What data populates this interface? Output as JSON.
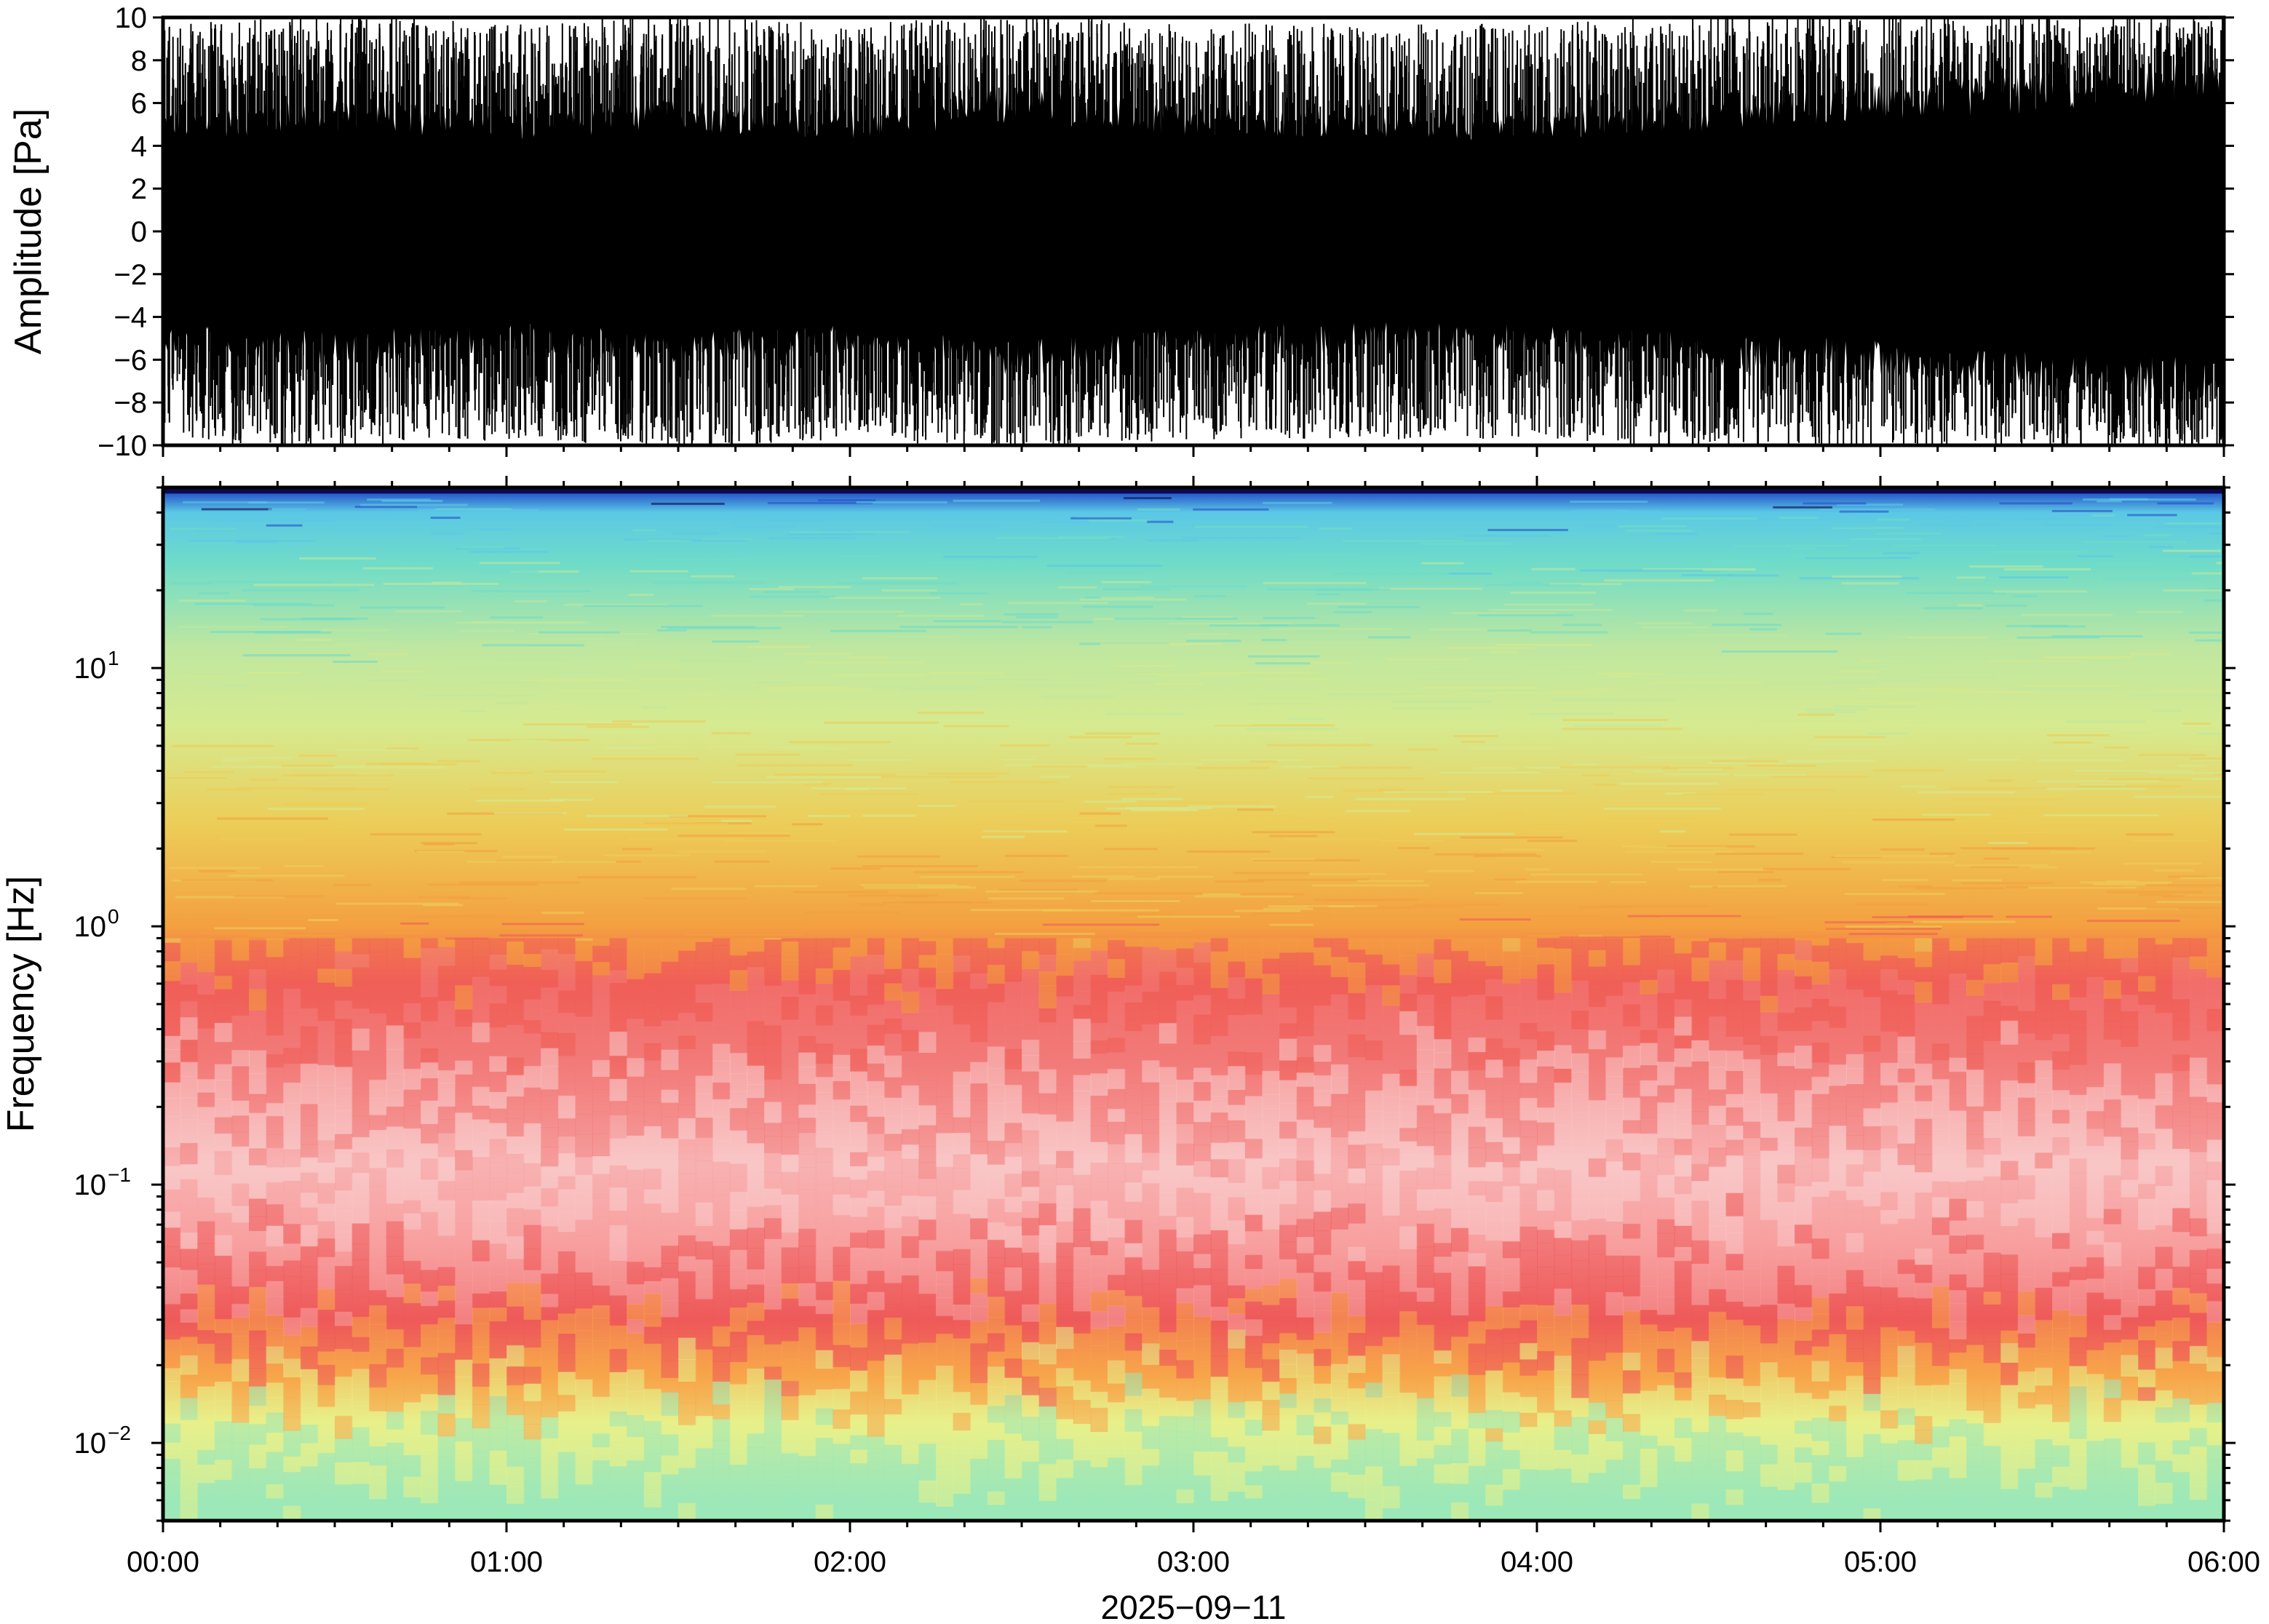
{
  "chart_data": [
    {
      "type": "line",
      "title": "",
      "ylabel": "Amplitude [Pa]",
      "xlabel": "",
      "ylim": [
        -10,
        10
      ],
      "yticks": [
        10,
        8,
        6,
        4,
        2,
        0,
        -2,
        -4,
        -6,
        -8,
        -10
      ],
      "ytick_labels": [
        "10",
        "8",
        "6",
        "4",
        "2",
        "0",
        "−2",
        "−4",
        "−6",
        "−8",
        "−10"
      ],
      "xlim_hours": [
        0,
        6
      ],
      "series_color": "#000000",
      "envelope_profile": [
        {
          "t": 0.0,
          "p95": 5.0,
          "peak": 9.5
        },
        {
          "t": 0.5,
          "p95": 5.5,
          "peak": 10
        },
        {
          "t": 1.0,
          "p95": 5.0,
          "peak": 9.5
        },
        {
          "t": 1.5,
          "p95": 5.5,
          "peak": 10
        },
        {
          "t": 2.0,
          "p95": 5.0,
          "peak": 9.5
        },
        {
          "t": 2.5,
          "p95": 6.0,
          "peak": 10
        },
        {
          "t": 3.0,
          "p95": 5.0,
          "peak": 9.5
        },
        {
          "t": 3.5,
          "p95": 5.0,
          "peak": 9.5
        },
        {
          "t": 4.0,
          "p95": 5.0,
          "peak": 9.5
        },
        {
          "t": 4.5,
          "p95": 5.5,
          "peak": 10
        },
        {
          "t": 5.0,
          "p95": 6.0,
          "peak": 10
        },
        {
          "t": 5.5,
          "p95": 6.5,
          "peak": 10
        },
        {
          "t": 6.0,
          "p95": 7.0,
          "peak": 10
        }
      ]
    },
    {
      "type": "heatmap",
      "title": "",
      "ylabel": "Frequency [Hz]",
      "xlabel": "2025−09−11",
      "yscale": "log",
      "ylim": [
        0.005,
        50
      ],
      "ytick_values": [
        0.01,
        0.1,
        1,
        10
      ],
      "ytick_bases": [
        "10",
        "10",
        "10",
        "10"
      ],
      "ytick_exponents": [
        "−2",
        "−1",
        "0",
        "1"
      ],
      "xlim_hours": [
        0,
        6
      ],
      "xticks": [
        "00:00",
        "01:00",
        "02:00",
        "03:00",
        "04:00",
        "05:00",
        "06:00"
      ],
      "colormap": "rainbow (blue low power → red high power, pink = highest)",
      "colorbar": "none shown",
      "power_profile_vs_frequency": [
        {
          "freq_hz": 0.006,
          "color": "#9de8b8"
        },
        {
          "freq_hz": 0.012,
          "color": "#e8f08a"
        },
        {
          "freq_hz": 0.018,
          "color": "#f7a64a"
        },
        {
          "freq_hz": 0.03,
          "color": "#ee5a5a"
        },
        {
          "freq_hz": 0.06,
          "color": "#f8a0a0"
        },
        {
          "freq_hz": 0.12,
          "color": "#f9c6c6"
        },
        {
          "freq_hz": 0.3,
          "color": "#f27a78"
        },
        {
          "freq_hz": 0.6,
          "color": "#f05e58"
        },
        {
          "freq_hz": 1.0,
          "color": "#f4a040"
        },
        {
          "freq_hz": 2.5,
          "color": "#eccd58"
        },
        {
          "freq_hz": 6.0,
          "color": "#d6ea90"
        },
        {
          "freq_hz": 12.0,
          "color": "#bfe7a0"
        },
        {
          "freq_hz": 25.0,
          "color": "#70dcc8"
        },
        {
          "freq_hz": 40.0,
          "color": "#5bc8e6"
        },
        {
          "freq_hz": 48.0,
          "color": "#2450c8"
        },
        {
          "freq_hz": 50.0,
          "color": "#0a0a50"
        }
      ]
    }
  ]
}
